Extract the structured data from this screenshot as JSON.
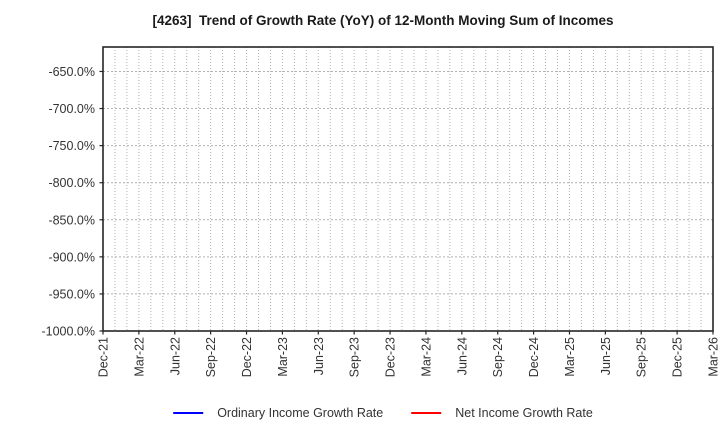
{
  "chart": {
    "title": "[4263]  Trend of Growth Rate (YoY) of 12-Month Moving Sum of Incomes"
  },
  "chart_data": {
    "type": "line",
    "title": "[4263]  Trend of Growth Rate (YoY) of 12-Month Moving Sum of Incomes",
    "xlabel": "",
    "ylabel": "",
    "x_tick_labels": [
      "Dec-21",
      "Mar-22",
      "Jun-22",
      "Sep-22",
      "Dec-22",
      "Mar-23",
      "Jun-23",
      "Sep-23",
      "Dec-23",
      "Mar-24",
      "Jun-24",
      "Sep-24",
      "Dec-24",
      "Mar-25",
      "Jun-25",
      "Sep-25",
      "Dec-25",
      "Mar-26"
    ],
    "months_between_labels": 3,
    "minor_x_gridlines": "monthly",
    "y_ticks": [
      -650,
      -700,
      -750,
      -800,
      -850,
      -900,
      -950,
      -1000
    ],
    "y_tick_labels": [
      "-650.0%",
      "-700.0%",
      "-750.0%",
      "-800.0%",
      "-850.0%",
      "-900.0%",
      "-950.0%",
      "-1000.0%"
    ],
    "ylim": [
      -1000,
      -617
    ],
    "grid": true,
    "legend_position": "bottom-center",
    "plot_is_empty": true,
    "series": [
      {
        "name": "Ordinary Income Growth Rate",
        "color": "#0000ff",
        "values": []
      },
      {
        "name": "Net Income Growth Rate",
        "color": "#ff0000",
        "values": []
      }
    ]
  },
  "colors": {
    "background": "#ffffff",
    "axis_spine": "#262626",
    "gridline": "#b0b0b0",
    "tick_text": "#333333",
    "title_text": "#1a1a1a"
  }
}
